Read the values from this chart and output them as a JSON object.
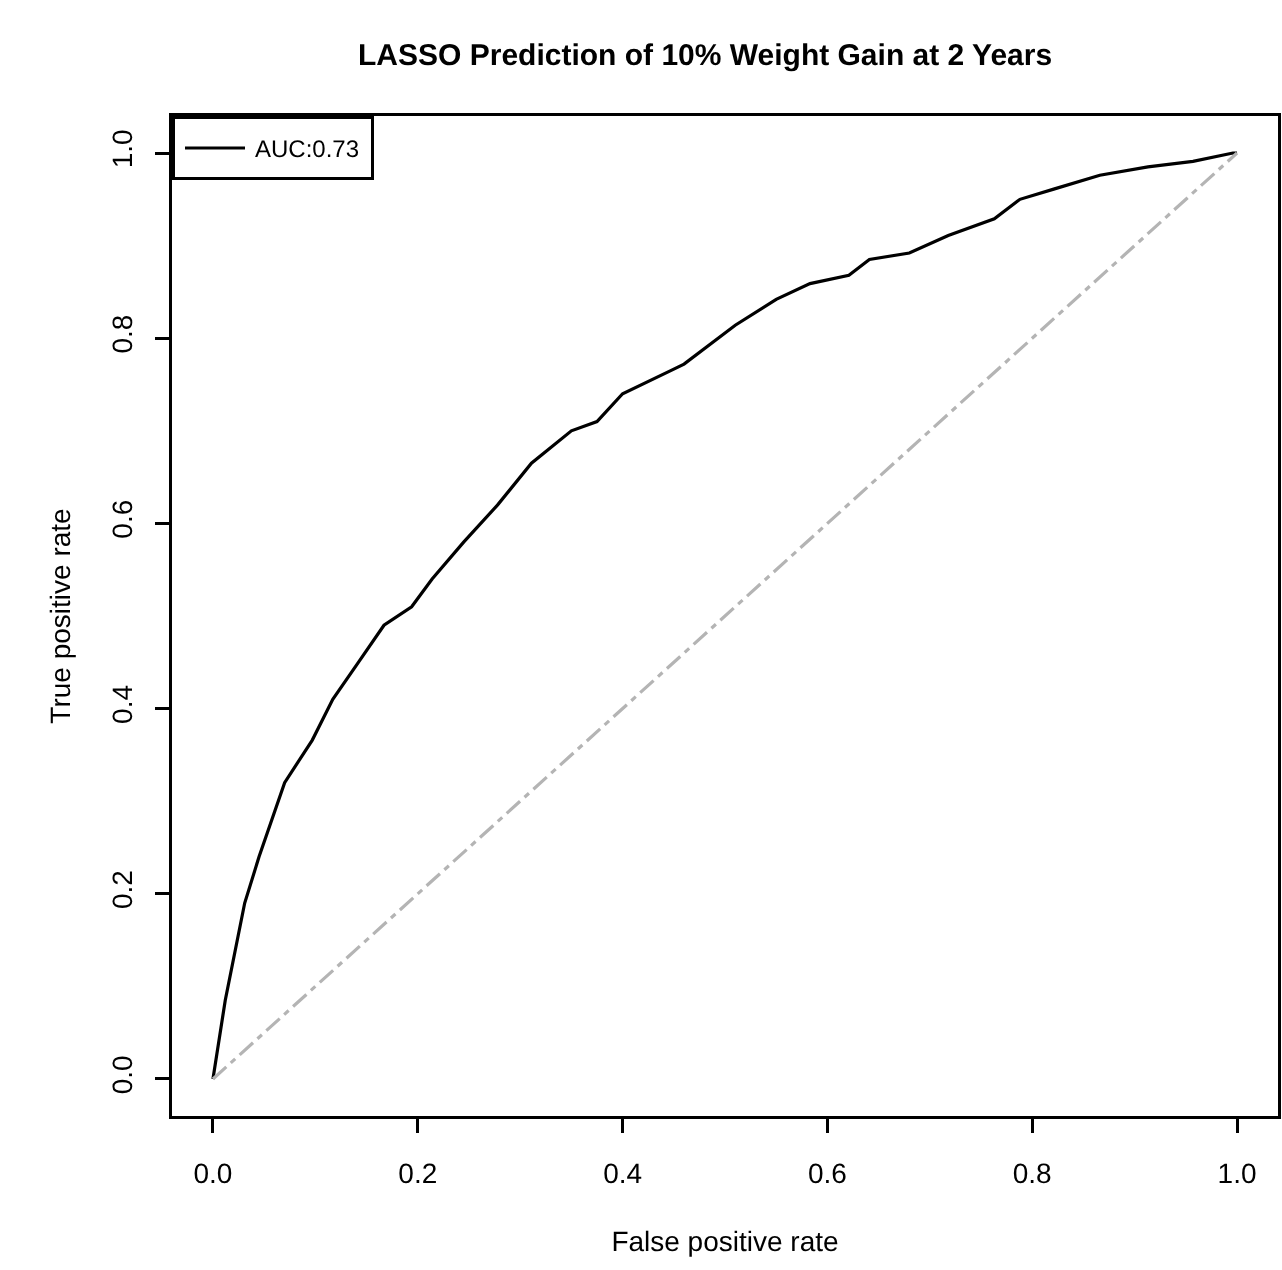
{
  "chart_data": {
    "type": "line",
    "title": "LASSO Prediction of 10% Weight Gain at 2 Years",
    "xlabel": "False positive rate",
    "ylabel": "True positive rate",
    "xlim": [
      -0.04,
      1.04
    ],
    "xticks": [
      {
        "value": 0,
        "label": "0.0"
      },
      0.2,
      0.4,
      0.6,
      0.8,
      {
        "value": 1,
        "label": "1.0"
      }
    ],
    "ylim": [
      -0.04,
      1.04
    ],
    "yticks": [
      {
        "value": 0,
        "label": "0.0"
      },
      0.2,
      0.4,
      0.6,
      0.8,
      {
        "value": 1,
        "label": "1.0"
      }
    ],
    "grid": false,
    "legend": "top left",
    "marker": "none",
    "series": [
      {
        "name": "AUC:0.73",
        "color": "#000000",
        "line_style": "solid",
        "x": [
          0,
          0.012,
          0.031,
          0.045,
          0.07,
          0.097,
          0.117,
          0.142,
          0.167,
          0.194,
          0.214,
          0.245,
          0.278,
          0.311,
          0.35,
          0.375,
          0.4,
          0.447,
          0.46,
          0.51,
          0.55,
          0.583,
          0.621,
          0.641,
          0.68,
          0.718,
          0.763,
          0.788,
          0.821,
          0.866,
          0.913,
          0.957,
          0.996,
          1
        ],
        "values": [
          0,
          0.085,
          0.19,
          0.24,
          0.32,
          0.366,
          0.41,
          0.45,
          0.49,
          0.51,
          0.54,
          0.58,
          0.62,
          0.665,
          0.7,
          0.71,
          0.74,
          0.765,
          0.772,
          0.814,
          0.842,
          0.859,
          0.868,
          0.885,
          0.892,
          0.911,
          0.929,
          0.95,
          0.961,
          0.976,
          0.985,
          0.991,
          1,
          1
        ]
      },
      {
        "color": "#b4b4b4",
        "line_style": "dashed",
        "x": [
          0,
          1
        ],
        "values": [
          0,
          1
        ]
      }
    ]
  }
}
